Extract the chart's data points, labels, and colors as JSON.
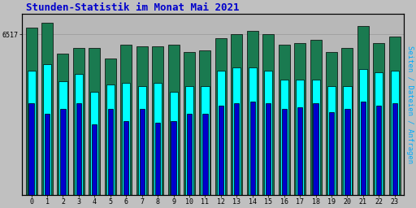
{
  "title": "Stunden-Statistik im Monat Mai 2021",
  "ylabel_right": "Seiten / Dateien / Anfragen",
  "ytick_label": "6517",
  "hours": [
    0,
    1,
    2,
    3,
    4,
    5,
    6,
    7,
    8,
    9,
    10,
    11,
    12,
    13,
    14,
    15,
    16,
    17,
    18,
    19,
    20,
    21,
    22,
    23
  ],
  "green_bars": [
    0.97,
    1.0,
    0.82,
    0.85,
    0.85,
    0.79,
    0.87,
    0.86,
    0.86,
    0.87,
    0.83,
    0.84,
    0.91,
    0.93,
    0.95,
    0.93,
    0.87,
    0.88,
    0.9,
    0.83,
    0.85,
    0.98,
    0.88,
    0.92
  ],
  "cyan_bars": [
    0.72,
    0.76,
    0.66,
    0.7,
    0.6,
    0.64,
    0.65,
    0.63,
    0.65,
    0.6,
    0.63,
    0.63,
    0.72,
    0.74,
    0.74,
    0.72,
    0.67,
    0.67,
    0.67,
    0.63,
    0.63,
    0.73,
    0.71,
    0.72
  ],
  "blue_bars": [
    0.53,
    0.47,
    0.5,
    0.53,
    0.41,
    0.5,
    0.43,
    0.5,
    0.42,
    0.43,
    0.47,
    0.47,
    0.52,
    0.53,
    0.54,
    0.53,
    0.5,
    0.51,
    0.53,
    0.48,
    0.5,
    0.54,
    0.52,
    0.53
  ],
  "green_color": "#1a7a50",
  "cyan_color": "#00ffff",
  "blue_color": "#0000cc",
  "bg_color": "#c0c0c0",
  "plot_bg": "#b8b8b8",
  "title_color": "#0000cc",
  "ylabel_right_color": "#00aaff",
  "border_color": "#000000",
  "ymax": 1.05,
  "ymin": 0.0,
  "figw": 5.12,
  "figh": 2.56,
  "dpi": 100
}
